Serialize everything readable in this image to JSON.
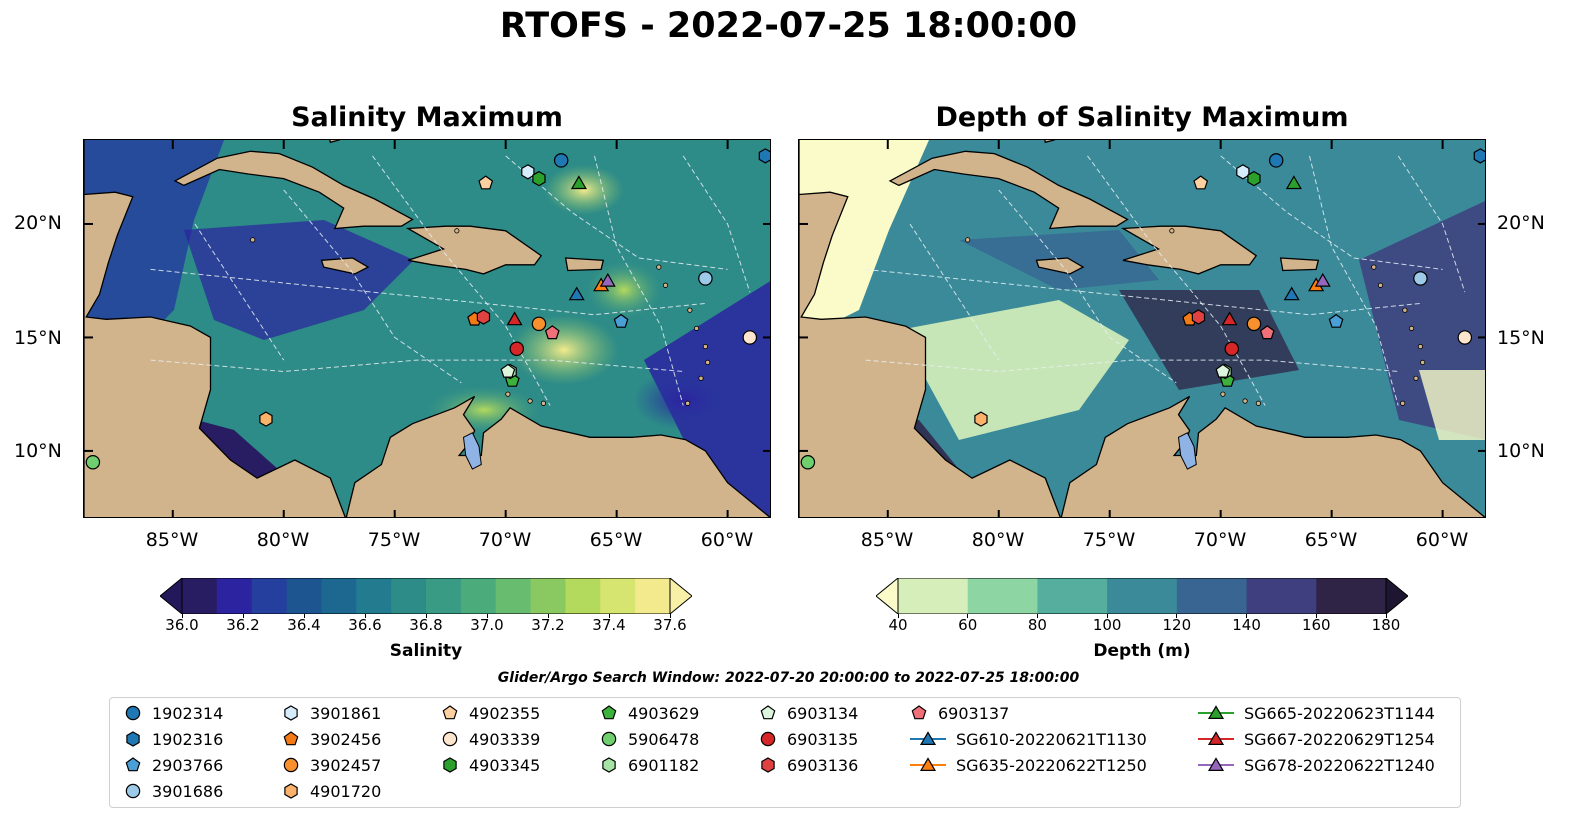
{
  "title": "RTOFS - 2022-07-25 18:00:00",
  "panels": {
    "left": {
      "title": "Salinity Maximum"
    },
    "right": {
      "title": "Depth of Salinity Maximum"
    }
  },
  "lat_labels": [
    "20°N",
    "15°N",
    "10°N"
  ],
  "lon_labels": [
    "85°W",
    "80°W",
    "75°W",
    "70°W",
    "65°W",
    "60°W"
  ],
  "colorbars": {
    "salinity": {
      "label": "Salinity",
      "ticks": [
        "36.0",
        "36.2",
        "36.4",
        "36.6",
        "36.8",
        "37.0",
        "37.2",
        "37.4",
        "37.6"
      ],
      "colors": [
        "#281d63",
        "#2c23a0",
        "#253f9e",
        "#1d5590",
        "#1c6891",
        "#237b8f",
        "#2d8b88",
        "#3a9b84",
        "#4bab7b",
        "#67bc70",
        "#8ac962",
        "#b3d95d",
        "#d6e470",
        "#f2ea8d"
      ],
      "under": "#23185a",
      "over": "#f7f0a6"
    },
    "depth": {
      "label": "Depth (m)",
      "ticks": [
        "40",
        "60",
        "80",
        "100",
        "120",
        "140",
        "160",
        "180"
      ],
      "colors": [
        "#d6efba",
        "#8dd6a4",
        "#55ae9e",
        "#3a8a99",
        "#386592",
        "#3f3f7f",
        "#2f2346"
      ],
      "under": "#fafbc8",
      "over": "#1e1630"
    }
  },
  "search_window": "Glider/Argo Search Window: 2022-07-20 20:00:00 to 2022-07-25 18:00:00",
  "legend": [
    {
      "id": "1902314",
      "marker": "circle",
      "color": "#1f77b4"
    },
    {
      "id": "1902316",
      "marker": "hexagon",
      "color": "#1f77b4"
    },
    {
      "id": "2903766",
      "marker": "pentagon",
      "color": "#4a9fd6"
    },
    {
      "id": "3901686",
      "marker": "circle",
      "color": "#9ecae9"
    },
    {
      "id": "3901861",
      "marker": "hexagon",
      "color": "#d6ecfa"
    },
    {
      "id": "3902456",
      "marker": "pentagon",
      "color": "#f47a16"
    },
    {
      "id": "3902457",
      "marker": "circle",
      "color": "#f7902d"
    },
    {
      "id": "4901720",
      "marker": "hexagon",
      "color": "#fbb36c"
    },
    {
      "id": "4902355",
      "marker": "pentagon",
      "color": "#fdd0a2"
    },
    {
      "id": "4903339",
      "marker": "circle",
      "color": "#fee6ce"
    },
    {
      "id": "4903345",
      "marker": "hexagon",
      "color": "#2ca02c"
    },
    {
      "id": "4903629",
      "marker": "pentagon",
      "color": "#3cb13c"
    },
    {
      "id": "5906478",
      "marker": "circle",
      "color": "#6fcf6f"
    },
    {
      "id": "6901182",
      "marker": "hexagon",
      "color": "#a6e4a6"
    },
    {
      "id": "6903134",
      "marker": "pentagon",
      "color": "#dcf5dc"
    },
    {
      "id": "6903135",
      "marker": "circle",
      "color": "#d62728"
    },
    {
      "id": "6903136",
      "marker": "hexagon",
      "color": "#e04242"
    },
    {
      "id": "6903137",
      "marker": "pentagon",
      "color": "#f0707a"
    },
    {
      "id": "SG610-20220621T1130",
      "marker": "triangle",
      "color": "#1f77b4"
    },
    {
      "id": "SG635-20220622T1250",
      "marker": "triangle",
      "color": "#ff7f0e"
    },
    {
      "id": "SG665-20220623T1144",
      "marker": "triangle",
      "color": "#2ca02c"
    },
    {
      "id": "SG667-20220629T1254",
      "marker": "triangle",
      "color": "#d62728"
    },
    {
      "id": "SG678-20220622T1240",
      "marker": "triangle",
      "color": "#9467bd"
    }
  ],
  "chart_data": {
    "type": "map",
    "lon_range": [
      -89,
      -58
    ],
    "lat_range": [
      7,
      23.7
    ],
    "observations": [
      {
        "id": "1902314",
        "lon": -67.5,
        "lat": 22.8
      },
      {
        "id": "1902316",
        "lon": -58.3,
        "lat": 23.0
      },
      {
        "id": "2903766",
        "lon": -64.8,
        "lat": 15.7
      },
      {
        "id": "3901686",
        "lon": -61.0,
        "lat": 17.6
      },
      {
        "id": "3901861",
        "lon": -69.0,
        "lat": 22.3
      },
      {
        "id": "3902456",
        "lon": -71.4,
        "lat": 15.8
      },
      {
        "id": "3902457",
        "lon": -68.5,
        "lat": 15.6
      },
      {
        "id": "4901720",
        "lon": -80.8,
        "lat": 11.4
      },
      {
        "id": "4902355",
        "lon": -70.9,
        "lat": 21.8
      },
      {
        "id": "4903339",
        "lon": -59.0,
        "lat": 15.0
      },
      {
        "id": "4903345",
        "lon": -68.5,
        "lat": 22.0
      },
      {
        "id": "4903629",
        "lon": -69.7,
        "lat": 13.1
      },
      {
        "id": "5906478",
        "lon": -88.6,
        "lat": 9.5
      },
      {
        "id": "6901182",
        "lon": -69.8,
        "lat": 13.5
      },
      {
        "id": "6903134",
        "lon": -69.9,
        "lat": 13.5
      },
      {
        "id": "6903135",
        "lon": -69.5,
        "lat": 14.5
      },
      {
        "id": "6903136",
        "lon": -71.0,
        "lat": 15.9
      },
      {
        "id": "6903137",
        "lon": -67.9,
        "lat": 15.2
      },
      {
        "id": "SG610-20220621T1130",
        "lon": -66.8,
        "lat": 16.9
      },
      {
        "id": "SG635-20220622T1250",
        "lon": -65.7,
        "lat": 17.3
      },
      {
        "id": "SG665-20220623T1144",
        "lon": -66.7,
        "lat": 21.8
      },
      {
        "id": "SG667-20220629T1254",
        "lon": -69.6,
        "lat": 15.8
      },
      {
        "id": "SG678-20220622T1240",
        "lon": -65.4,
        "lat": 17.5
      }
    ]
  }
}
